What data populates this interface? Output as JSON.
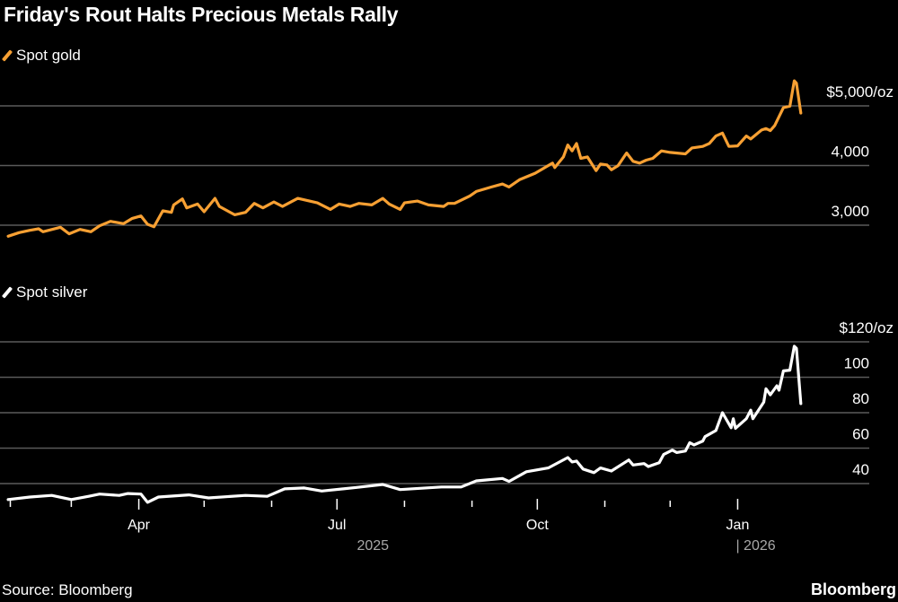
{
  "title": "Friday's Rout Halts Precious Metals Rally",
  "source": "Source: Bloomberg",
  "brand": "Bloomberg",
  "colors": {
    "gold": "#f7a033",
    "silver": "#ffffff",
    "grid": "#5a5a5a",
    "year_label": "#a8a8a8"
  },
  "chart_data": [
    {
      "type": "line",
      "name": "Spot gold",
      "x_unit": "day of year 2025 (1 Jan 2025 = 0)",
      "yticks": [
        3000,
        4000,
        5000
      ],
      "ytick_labels": [
        "3,000",
        "4,000",
        "$5,000/oz"
      ],
      "ylim": [
        2500,
        5500
      ],
      "x": [
        30,
        35,
        40,
        44,
        46,
        54,
        58,
        63,
        68,
        72,
        77,
        83,
        87,
        91,
        94,
        97,
        101,
        105,
        106,
        110,
        112,
        117,
        120,
        125,
        127,
        134,
        139,
        143,
        147,
        152,
        156,
        163,
        172,
        178,
        182,
        187,
        191,
        197,
        202,
        205,
        210,
        212,
        218,
        223,
        230,
        232,
        235,
        242,
        245,
        252,
        257,
        260,
        265,
        272,
        280,
        281,
        285,
        287,
        289,
        291,
        293,
        296,
        300,
        302,
        305,
        307,
        310,
        314,
        317,
        320,
        323,
        326,
        330,
        334,
        341,
        344,
        349,
        352,
        355,
        358,
        361,
        365,
        369,
        371,
        376,
        378,
        380,
        382,
        386,
        389,
        391,
        392,
        394
      ],
      "values": [
        2815,
        2875,
        2915,
        2940,
        2890,
        2965,
        2855,
        2930,
        2890,
        2990,
        3065,
        3025,
        3115,
        3155,
        3015,
        2975,
        3240,
        3215,
        3340,
        3440,
        3290,
        3355,
        3225,
        3450,
        3315,
        3175,
        3215,
        3365,
        3290,
        3390,
        3315,
        3450,
        3375,
        3265,
        3355,
        3315,
        3365,
        3340,
        3450,
        3355,
        3265,
        3375,
        3405,
        3340,
        3315,
        3365,
        3365,
        3490,
        3565,
        3640,
        3690,
        3640,
        3765,
        3870,
        4040,
        3965,
        4145,
        4345,
        4245,
        4370,
        4120,
        4145,
        3915,
        4025,
        4010,
        3930,
        3995,
        4210,
        4070,
        4040,
        4090,
        4120,
        4245,
        4220,
        4195,
        4295,
        4320,
        4370,
        4495,
        4545,
        4320,
        4330,
        4495,
        4445,
        4595,
        4620,
        4585,
        4670,
        4970,
        4995,
        5420,
        5380,
        4880
      ]
    },
    {
      "type": "line",
      "name": "Spot silver",
      "x_unit": "day of year 2025 (1 Jan 2025 = 0)",
      "yticks": [
        40,
        60,
        80,
        100,
        120
      ],
      "ytick_labels": [
        "40",
        "60",
        "80",
        "100",
        "$120/oz"
      ],
      "ylim": [
        28,
        120
      ],
      "x": [
        30,
        40,
        50,
        59,
        67,
        72,
        81,
        85,
        91,
        94,
        99,
        113,
        122,
        139,
        149,
        157,
        166,
        174,
        190,
        202,
        210,
        229,
        238,
        245,
        257,
        260,
        268,
        278,
        287,
        289,
        291,
        294,
        299,
        302,
        307,
        315,
        317,
        322,
        324,
        329,
        331,
        335,
        337,
        341,
        343,
        345,
        349,
        350,
        355,
        358,
        362,
        363,
        364,
        369,
        371,
        372,
        377,
        378,
        380,
        383,
        384,
        386,
        389,
        391,
        392,
        394
      ],
      "values": [
        31.0,
        32.4,
        33.3,
        31.0,
        32.8,
        34.1,
        33.3,
        34.4,
        34.1,
        29.4,
        32.4,
        33.6,
        31.9,
        33.3,
        32.8,
        37.0,
        37.5,
        35.8,
        37.8,
        39.5,
        36.6,
        38.1,
        38.1,
        41.5,
        42.9,
        41.2,
        46.7,
        48.8,
        54.7,
        52.2,
        52.7,
        48.2,
        46.2,
        48.8,
        47.1,
        53.3,
        50.5,
        51.3,
        49.6,
        51.8,
        56.4,
        58.9,
        57.5,
        58.4,
        63.1,
        61.8,
        64.0,
        66.5,
        69.9,
        80.0,
        71.5,
        76.6,
        71.2,
        76.6,
        81.4,
        76.6,
        85.9,
        93.5,
        90.1,
        95.2,
        92.7,
        103.6,
        104.0,
        117.5,
        116.3,
        85.1
      ]
    }
  ],
  "x_axis": {
    "ticks": [
      {
        "day": 31,
        "label": "",
        "major": false
      },
      {
        "day": 59,
        "label": "",
        "major": false
      },
      {
        "day": 90,
        "label": "Apr",
        "major": true
      },
      {
        "day": 120,
        "label": "",
        "major": false
      },
      {
        "day": 151,
        "label": "",
        "major": false
      },
      {
        "day": 181,
        "label": "Jul",
        "major": true
      },
      {
        "day": 212,
        "label": "",
        "major": false
      },
      {
        "day": 243,
        "label": "",
        "major": false
      },
      {
        "day": 273,
        "label": "Oct",
        "major": true
      },
      {
        "day": 304,
        "label": "",
        "major": false
      },
      {
        "day": 334,
        "label": "",
        "major": false
      },
      {
        "day": 365,
        "label": "Jan",
        "major": true
      }
    ],
    "years": [
      {
        "day": 181,
        "label": "2025"
      },
      {
        "day": 365,
        "label": "| 2026"
      }
    ]
  }
}
